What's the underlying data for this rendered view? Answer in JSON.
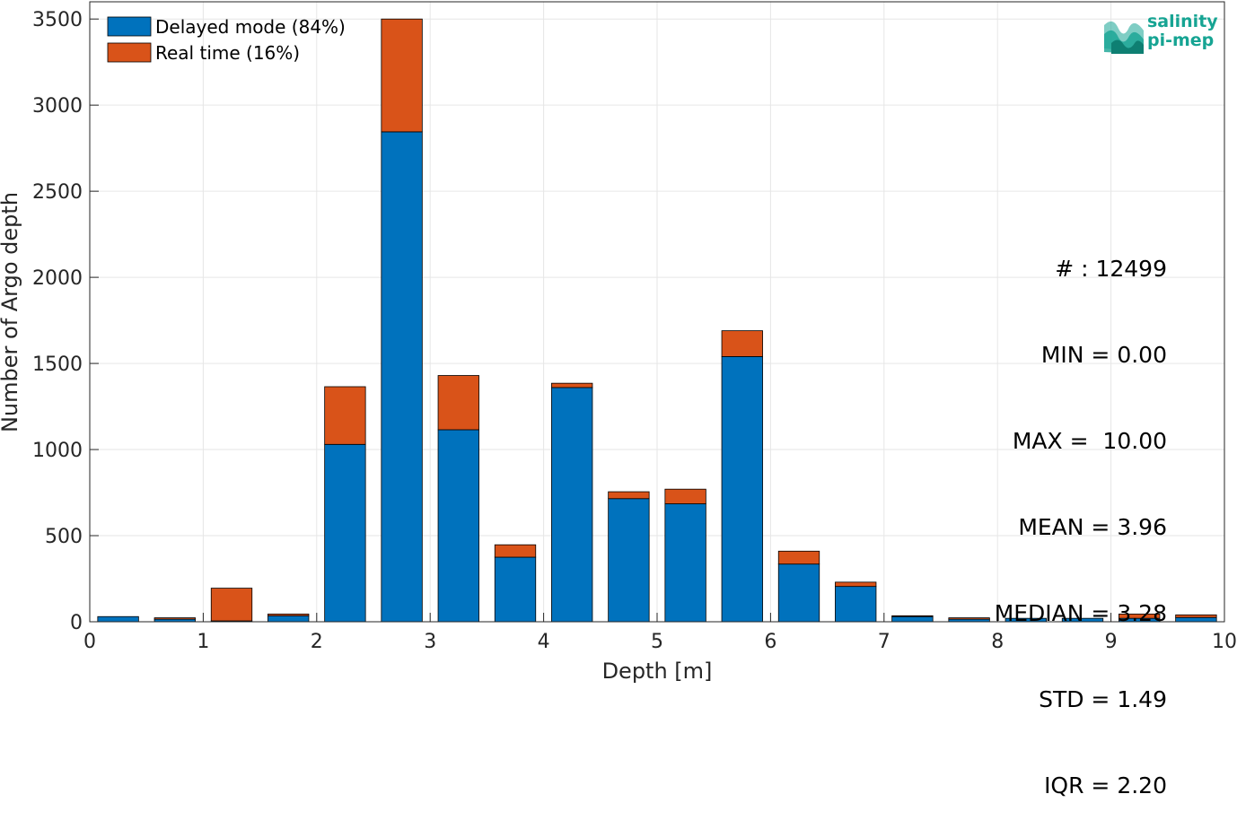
{
  "chart_data": {
    "type": "bar",
    "stacked": true,
    "xlabel": "Depth [m]",
    "ylabel": "Number of Argo depth",
    "xlim": [
      0,
      10
    ],
    "ylim": [
      0,
      3600
    ],
    "xticks": [
      0,
      1,
      2,
      3,
      4,
      5,
      6,
      7,
      8,
      9,
      10
    ],
    "yticks": [
      0,
      500,
      1000,
      1500,
      2000,
      2500,
      3000,
      3500
    ],
    "grid": true,
    "legend_position": "top-left",
    "bin_width": 0.5,
    "x": [
      0.25,
      0.75,
      1.25,
      1.75,
      2.25,
      2.75,
      3.25,
      3.75,
      4.25,
      4.75,
      5.25,
      5.75,
      6.25,
      6.75,
      7.25,
      7.75,
      8.25,
      8.75,
      9.25,
      9.75
    ],
    "series": [
      {
        "name": "Delayed mode (84%)",
        "color": "#0072bd",
        "values": [
          30,
          15,
          5,
          35,
          1030,
          2845,
          1115,
          375,
          1360,
          715,
          685,
          1540,
          335,
          205,
          30,
          15,
          20,
          20,
          20,
          25
        ]
      },
      {
        "name": "Real time (16%)",
        "color": "#d95319",
        "values": [
          0,
          8,
          190,
          10,
          335,
          655,
          315,
          72,
          25,
          40,
          85,
          150,
          75,
          25,
          5,
          8,
          0,
          0,
          25,
          15
        ]
      }
    ],
    "annotations": [
      "# : 12499",
      "MIN = 0.00",
      "MAX =  10.00",
      "MEAN = 3.96",
      "MEDIAN = 3.28",
      "STD = 1.49",
      "IQR = 2.20"
    ]
  },
  "logo": {
    "line1": "salinity",
    "line2": "pi-mep",
    "color": "#16a493"
  }
}
